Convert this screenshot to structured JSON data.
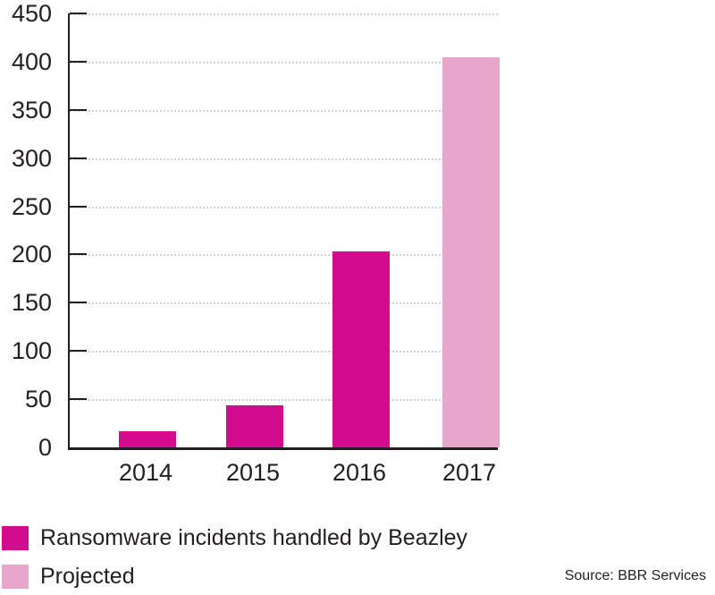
{
  "chart_data": {
    "type": "bar",
    "title": "",
    "categories": [
      "2014",
      "2015",
      "2016",
      "2017"
    ],
    "values": [
      17,
      44,
      203,
      405
    ],
    "bar_styles": [
      "actual",
      "actual",
      "actual",
      "projected"
    ],
    "ylim": [
      0,
      450
    ],
    "ytick_step": 50,
    "yticks": [
      0,
      50,
      100,
      150,
      200,
      250,
      300,
      350,
      400,
      450
    ],
    "xlabel": "",
    "ylabel": "",
    "grid": "horizontal-dotted",
    "legend_position": "bottom-left",
    "colors": {
      "actual": "#d20c8f",
      "projected": "#e8a6cb",
      "axis": "#231f20",
      "grid": "#d2d2d2",
      "text": "#231f20"
    }
  },
  "legend": {
    "items": [
      {
        "label": "Ransomware incidents handled by Beazley",
        "style": "actual"
      },
      {
        "label": "Projected",
        "style": "projected"
      }
    ]
  },
  "source_text": "Source: BBR Services"
}
